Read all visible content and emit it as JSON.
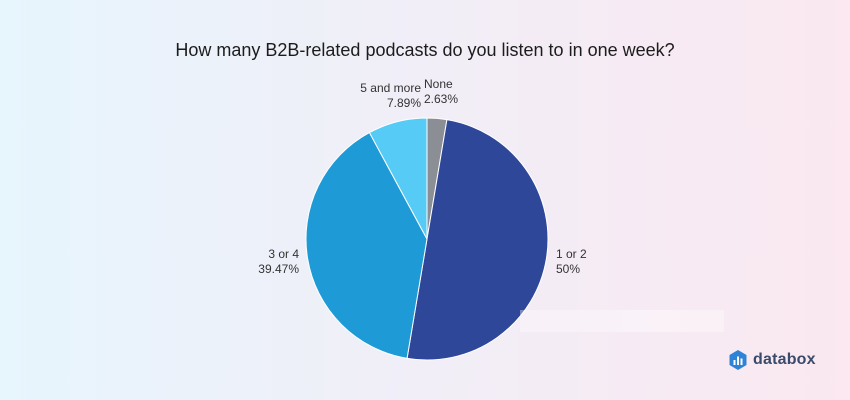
{
  "chart_data": {
    "type": "pie",
    "title": "How many B2B-related podcasts do you listen to in one week?",
    "slices": [
      {
        "name": "None",
        "value": 2.63,
        "value_label": "2.63%",
        "color": "#8c8e96"
      },
      {
        "name": "1 or 2",
        "value": 50,
        "value_label": "50%",
        "color": "#2e4799"
      },
      {
        "name": "3 or 4",
        "value": 39.47,
        "value_label": "39.47%",
        "color": "#1e9bd7"
      },
      {
        "name": "5 and more",
        "value": 7.89,
        "value_label": "7.89%",
        "color": "#56cbf5"
      }
    ],
    "start_angle": "12 o'clock",
    "direction": "clockwise",
    "legend": "none"
  },
  "brand": {
    "name": "databox",
    "icon": "databox-logo-icon"
  }
}
